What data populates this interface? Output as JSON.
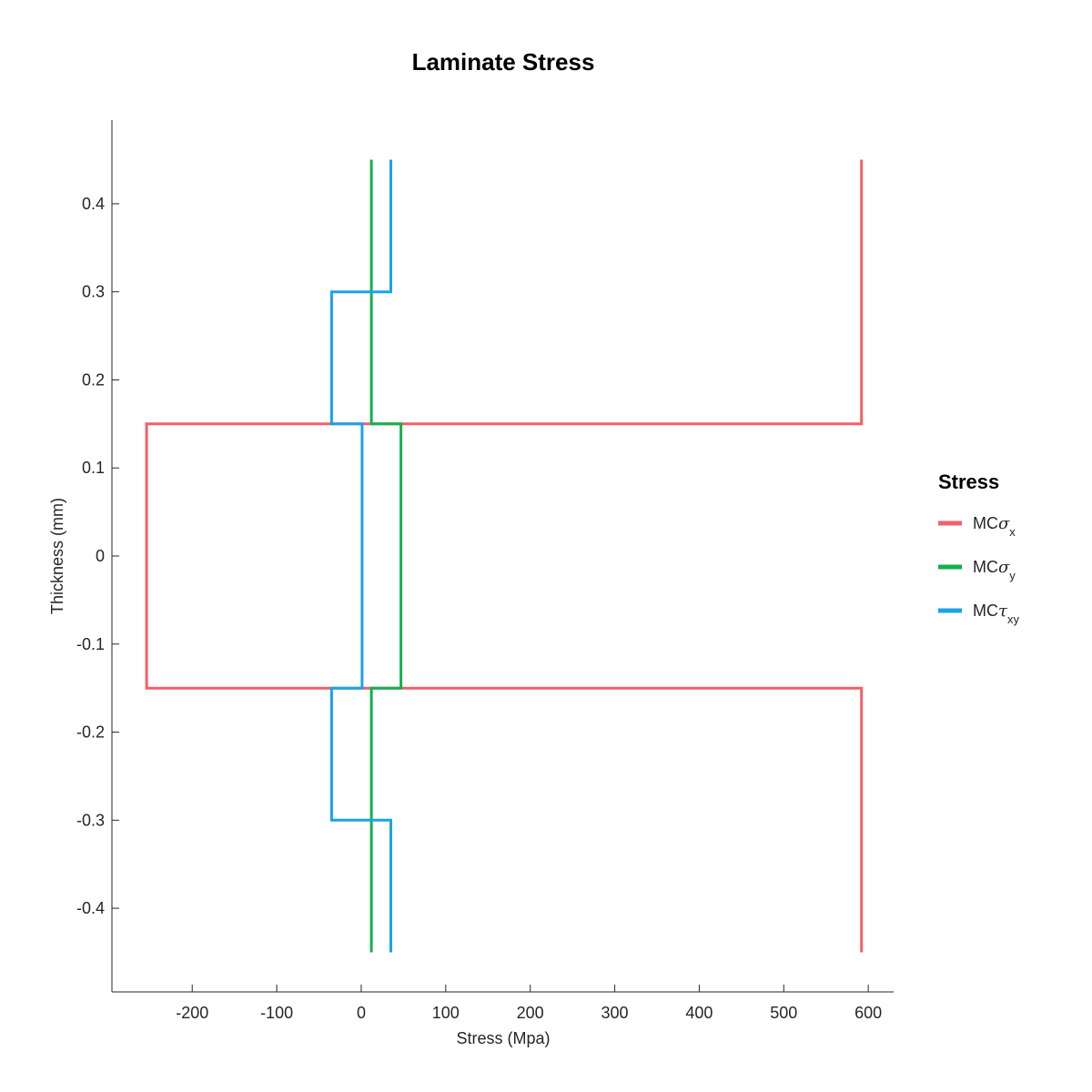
{
  "chart_data": {
    "type": "line",
    "title": "Laminate Stress",
    "xlabel": "Stress (Mpa)",
    "ylabel": "Thickness (mm)",
    "xlim": [
      -295,
      630
    ],
    "ylim": [
      -0.495,
      0.495
    ],
    "xticks": [
      -200,
      -100,
      0,
      100,
      200,
      300,
      400,
      500,
      600
    ],
    "xtick_labels": [
      "-200",
      "-100",
      "0",
      "100",
      "200",
      "300",
      "400",
      "500",
      "600"
    ],
    "yticks": [
      0.4,
      0.3,
      0.2,
      0.1,
      0,
      -0.1,
      -0.2,
      -0.3,
      -0.4
    ],
    "ytick_labels": [
      "0.4",
      "0.3",
      "0.2",
      "0.1",
      "0",
      "-0.1",
      "-0.2",
      "-0.3",
      "-0.4"
    ],
    "grid": false,
    "legend": {
      "title": "Stress",
      "placement": "right",
      "entries": [
        {
          "main": "MC",
          "symbol": "σ",
          "sub": "x",
          "color": "#F2606A"
        },
        {
          "main": "MC",
          "symbol": "σ",
          "sub": "y",
          "color": "#14B04B"
        },
        {
          "main": "MC",
          "symbol": "τ",
          "sub": "xy",
          "color": "#1AA3E8"
        }
      ]
    },
    "series": [
      {
        "color": "#F2606A",
        "x": [
          592,
          592,
          -254,
          -254,
          592,
          592
        ],
        "y": [
          0.45,
          0.15,
          0.15,
          -0.15,
          -0.15,
          -0.45
        ]
      },
      {
        "color": "#14B04B",
        "x": [
          12,
          12,
          47,
          47,
          12,
          12
        ],
        "y": [
          0.45,
          0.15,
          0.15,
          -0.15,
          -0.15,
          -0.45
        ]
      },
      {
        "color": "#1AA3E8",
        "x": [
          35,
          35,
          -35,
          -35,
          1,
          1,
          -35,
          -35,
          35,
          35
        ],
        "y": [
          0.45,
          0.3,
          0.3,
          0.15,
          0.15,
          -0.15,
          -0.15,
          -0.3,
          -0.3,
          -0.45
        ]
      }
    ]
  }
}
